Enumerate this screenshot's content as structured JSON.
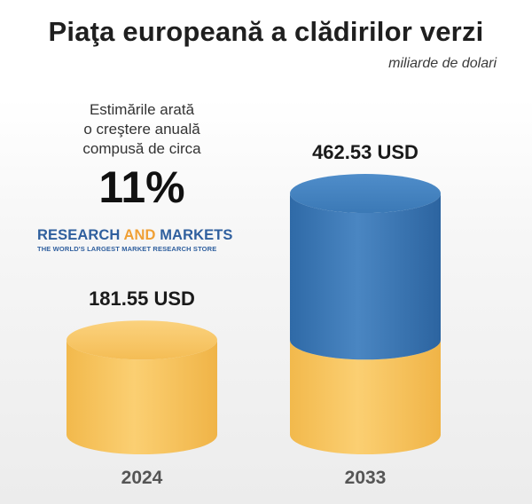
{
  "header": {
    "title": "Piaţa europeană a clădirilor verzi",
    "subtitle": "miliarde de dolari"
  },
  "annotation": {
    "lines": [
      "Estimările arată",
      "o creştere anuală",
      "compusă de circa"
    ],
    "value": "11%"
  },
  "logo": {
    "main_a": "RESEARCH ",
    "main_b": "AND",
    "main_c": " MARKETS",
    "tagline": "THE WORLD'S LARGEST MARKET RESEARCH STORE"
  },
  "colors": {
    "gold": "#f7c35e",
    "blue": "#3a78b4",
    "bg": "#ffffff"
  },
  "chart_data": {
    "type": "bar",
    "categories": [
      "2024",
      "2033"
    ],
    "values": [
      181.55,
      462.53
    ],
    "value_labels": [
      "181.55 USD",
      "462.53 USD"
    ],
    "ylabel": "",
    "xlabel": ""
  }
}
